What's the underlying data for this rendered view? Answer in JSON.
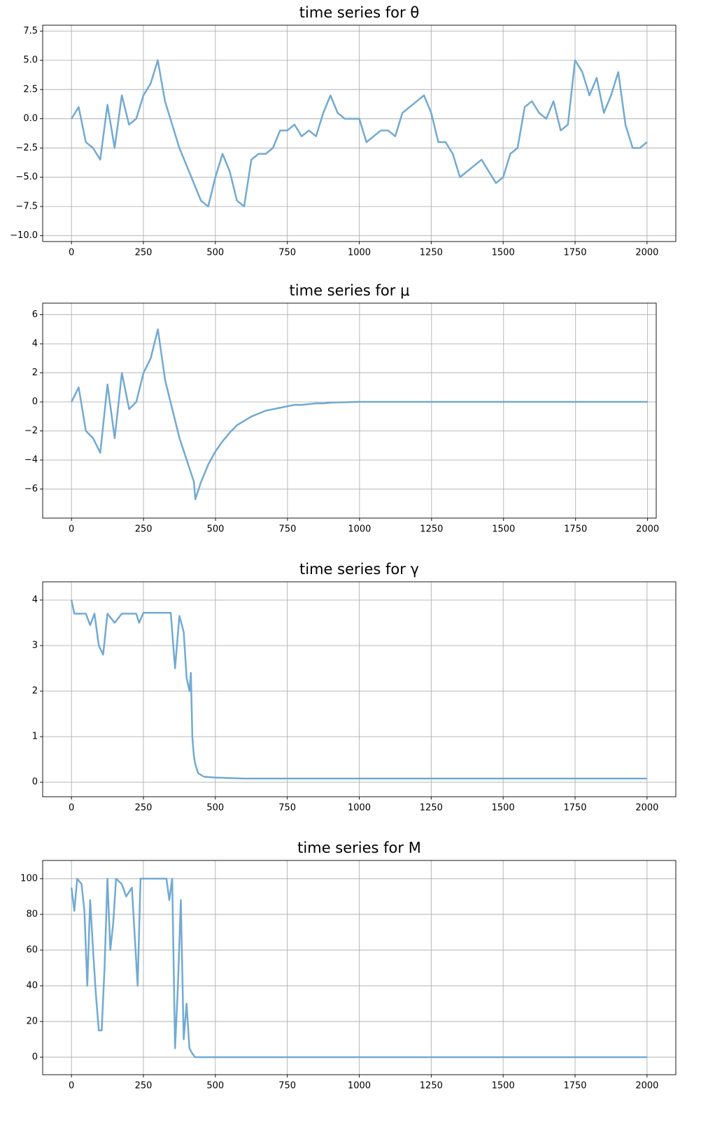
{
  "chart_data": [
    {
      "type": "line",
      "title": "time series for θ",
      "color": "#72aad2",
      "grid": true,
      "xlim": [
        -100,
        2100
      ],
      "ylim": [
        -10.5,
        8.0
      ],
      "xticks": [
        0,
        250,
        500,
        750,
        1000,
        1250,
        1500,
        1750,
        2000
      ],
      "yticks": [
        {
          "value": -10,
          "label": "−10.0"
        },
        {
          "value": -7.5,
          "label": "−7.5"
        },
        {
          "value": -5,
          "label": "−5.0"
        },
        {
          "value": -2.5,
          "label": "−2.5"
        },
        {
          "value": 0,
          "label": "0.0"
        },
        2.5,
        {
          "value": 5,
          "label": "5.0"
        },
        7.5
      ],
      "x": [
        0,
        25,
        50,
        75,
        100,
        125,
        150,
        175,
        200,
        225,
        250,
        275,
        300,
        325,
        350,
        375,
        400,
        425,
        450,
        475,
        500,
        525,
        550,
        575,
        600,
        625,
        650,
        675,
        700,
        725,
        750,
        775,
        800,
        825,
        850,
        875,
        900,
        925,
        950,
        975,
        1000,
        1025,
        1050,
        1075,
        1100,
        1125,
        1150,
        1175,
        1200,
        1225,
        1250,
        1275,
        1300,
        1325,
        1350,
        1375,
        1400,
        1425,
        1450,
        1475,
        1500,
        1525,
        1550,
        1575,
        1600,
        1625,
        1650,
        1675,
        1700,
        1725,
        1750,
        1775,
        1800,
        1825,
        1850,
        1875,
        1900,
        1925,
        1950,
        1975,
        2000
      ],
      "values": [
        0,
        1.0,
        -2.0,
        -2.5,
        -3.5,
        1.2,
        -2.5,
        2.0,
        -0.5,
        0.0,
        2.0,
        3.0,
        5.0,
        1.5,
        -0.5,
        -2.5,
        -4.0,
        -5.5,
        -7.0,
        -7.5,
        -5.0,
        -3.0,
        -4.5,
        -7.0,
        -7.5,
        -3.5,
        -3.0,
        -3.0,
        -2.5,
        -1.0,
        -1.0,
        -0.5,
        -1.5,
        -1.0,
        -1.5,
        0.5,
        2.0,
        0.5,
        0.0,
        0.0,
        0.0,
        -2.0,
        -1.5,
        -1.0,
        -1.0,
        -1.5,
        0.5,
        1.0,
        1.5,
        2.0,
        0.5,
        -2.0,
        -2.0,
        -3.0,
        -5.0,
        -4.5,
        -4.0,
        -3.5,
        -4.5,
        -5.5,
        -5.0,
        -3.0,
        -2.5,
        1.0,
        1.5,
        0.5,
        0.0,
        1.5,
        -1.0,
        -0.5,
        5.0,
        4.0,
        2.0,
        3.5,
        0.5,
        2.0,
        4.0,
        -0.5,
        -2.5,
        -2.5,
        -2.0
      ]
    },
    {
      "type": "line",
      "title": "time series for μ",
      "color": "#72aad2",
      "grid": true,
      "xlim": [
        -100,
        2030
      ],
      "ylim": [
        -8.0,
        6.8
      ],
      "xticks": [
        0,
        250,
        500,
        750,
        1000,
        1250,
        1500,
        1750,
        2000
      ],
      "yticks": [
        {
          "value": -6,
          "label": "−6"
        },
        {
          "value": -4,
          "label": "−4"
        },
        {
          "value": -2,
          "label": "−2"
        },
        0,
        2,
        4,
        6
      ],
      "x": [
        0,
        25,
        50,
        75,
        100,
        125,
        150,
        175,
        200,
        225,
        250,
        275,
        300,
        325,
        350,
        375,
        400,
        425,
        430,
        450,
        475,
        500,
        525,
        550,
        575,
        600,
        625,
        650,
        675,
        700,
        725,
        750,
        775,
        800,
        825,
        850,
        875,
        900,
        950,
        1000,
        1250,
        1500,
        1750,
        2000
      ],
      "values": [
        0,
        1.0,
        -2.0,
        -2.5,
        -3.5,
        1.2,
        -2.5,
        2.0,
        -0.5,
        0.0,
        2.0,
        3.0,
        5.0,
        1.5,
        -0.5,
        -2.5,
        -4.0,
        -5.5,
        -6.7,
        -5.5,
        -4.3,
        -3.4,
        -2.7,
        -2.1,
        -1.6,
        -1.3,
        -1.0,
        -0.8,
        -0.6,
        -0.5,
        -0.4,
        -0.3,
        -0.2,
        -0.2,
        -0.15,
        -0.1,
        -0.1,
        -0.05,
        -0.02,
        0,
        0,
        0,
        0,
        0
      ]
    },
    {
      "type": "line",
      "title": "time series for γ",
      "color": "#72aad2",
      "grid": true,
      "xlim": [
        -100,
        2100
      ],
      "ylim": [
        -0.32,
        4.4
      ],
      "xticks": [
        0,
        250,
        500,
        750,
        1000,
        1250,
        1500,
        1750,
        2000
      ],
      "yticks": [
        0,
        1,
        2,
        3,
        4
      ],
      "x": [
        0,
        10,
        50,
        65,
        80,
        95,
        110,
        125,
        150,
        175,
        200,
        225,
        235,
        250,
        300,
        345,
        360,
        375,
        390,
        400,
        410,
        415,
        420,
        425,
        430,
        440,
        460,
        500,
        600,
        2000
      ],
      "values": [
        4.0,
        3.7,
        3.7,
        3.45,
        3.7,
        3.0,
        2.8,
        3.7,
        3.5,
        3.7,
        3.7,
        3.7,
        3.5,
        3.72,
        3.72,
        3.72,
        2.5,
        3.65,
        3.3,
        2.3,
        2.0,
        2.4,
        1.0,
        0.6,
        0.4,
        0.2,
        0.12,
        0.1,
        0.08,
        0.08
      ]
    },
    {
      "type": "line",
      "title": "time series for M",
      "color": "#72aad2",
      "grid": true,
      "xlim": [
        -100,
        2100
      ],
      "ylim": [
        -9.8,
        110.2
      ],
      "xticks": [
        0,
        250,
        500,
        750,
        1000,
        1250,
        1500,
        1750,
        2000
      ],
      "yticks": [
        0,
        20,
        40,
        60,
        80,
        100
      ],
      "x": [
        0,
        10,
        20,
        35,
        45,
        55,
        65,
        75,
        85,
        95,
        105,
        115,
        125,
        135,
        145,
        155,
        175,
        190,
        210,
        230,
        240,
        300,
        330,
        340,
        350,
        360,
        370,
        380,
        390,
        400,
        410,
        420,
        430,
        2000
      ],
      "values": [
        95,
        82,
        100,
        97,
        82,
        40,
        88,
        60,
        35,
        15,
        15,
        50,
        100,
        60,
        75,
        100,
        97,
        90,
        95,
        40,
        100,
        100,
        100,
        88,
        100,
        5,
        40,
        88,
        10,
        30,
        5,
        2,
        0,
        0
      ]
    }
  ]
}
